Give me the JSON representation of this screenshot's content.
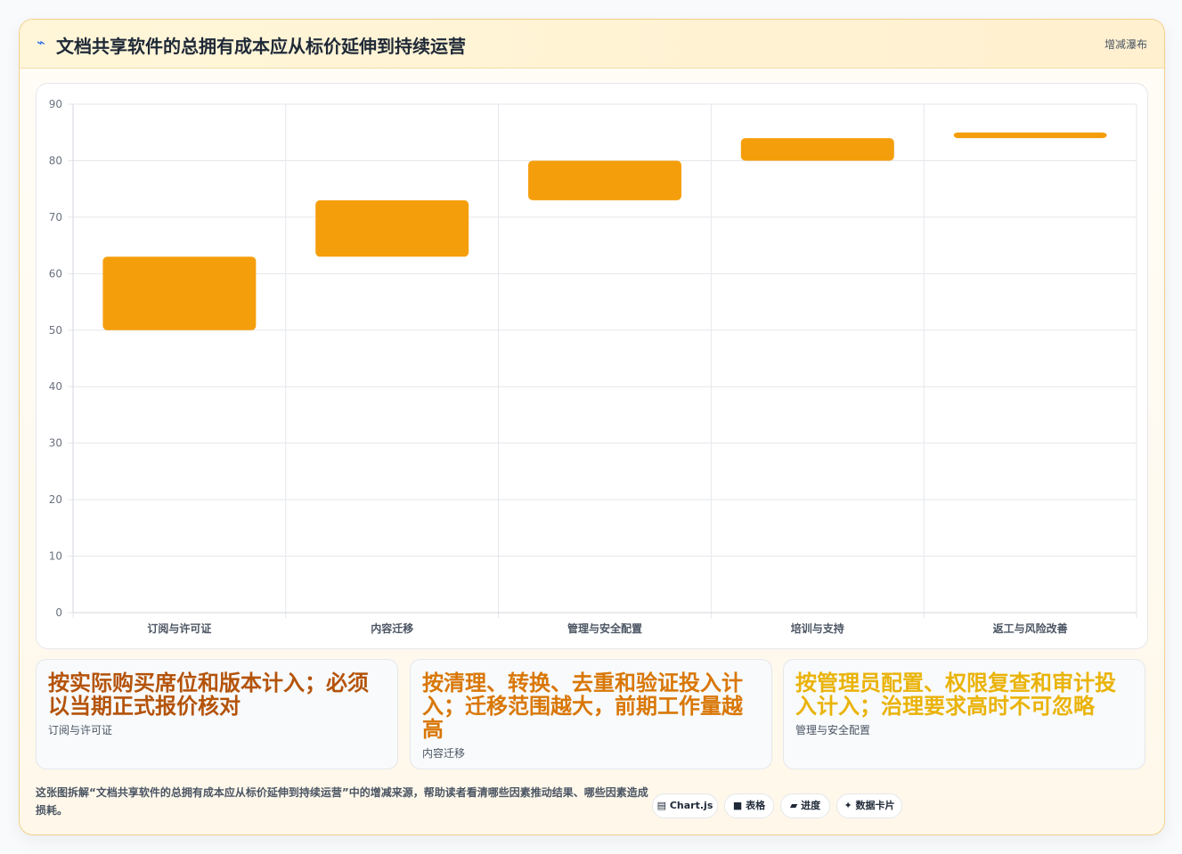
{
  "header": {
    "icon": "⌁",
    "title": "文档共享软件的总拥有成本应从标价延伸到持续运营",
    "tag": "增减瀑布"
  },
  "chart_data": {
    "type": "bar",
    "subtype": "floating",
    "categories": [
      "订阅与许可证",
      "内容迁移",
      "管理与安全配置",
      "培训与支持",
      "返工与风险改善"
    ],
    "ranges": [
      [
        50,
        63
      ],
      [
        63,
        73
      ],
      [
        73,
        80
      ],
      [
        80,
        84
      ],
      [
        84,
        85
      ]
    ],
    "ylim": [
      0,
      90
    ],
    "yticks": [
      0,
      10,
      20,
      30,
      40,
      50,
      60,
      70,
      80,
      90
    ],
    "grid": true,
    "bar_color": "#f59e0b"
  },
  "cards": [
    {
      "text": "按实际购买席位和版本计入；必须以当期正式报价核对",
      "label": "订阅与许可证",
      "color": "#b45309"
    },
    {
      "text": "按清理、转换、去重和验证投入计入；迁移范围越大，前期工作量越高",
      "label": "内容迁移",
      "color": "#d97706"
    },
    {
      "text": "按管理员配置、权限复查和审计投入计入；治理要求高时不可忽略",
      "label": "管理与安全配置",
      "color": "#eab308"
    }
  ],
  "footer": {
    "description": "这张图拆解“文档共享软件的总拥有成本应从标价延伸到持续运营”中的增减来源，帮助读者看清哪些因素推动结果、哪些因素造成损耗。",
    "pills": [
      {
        "icon": "▤",
        "label": "Chart.js"
      },
      {
        "icon": "■",
        "label": "表格"
      },
      {
        "icon": "▰",
        "label": "进度"
      },
      {
        "icon": "✦",
        "label": "数据卡片"
      }
    ]
  }
}
